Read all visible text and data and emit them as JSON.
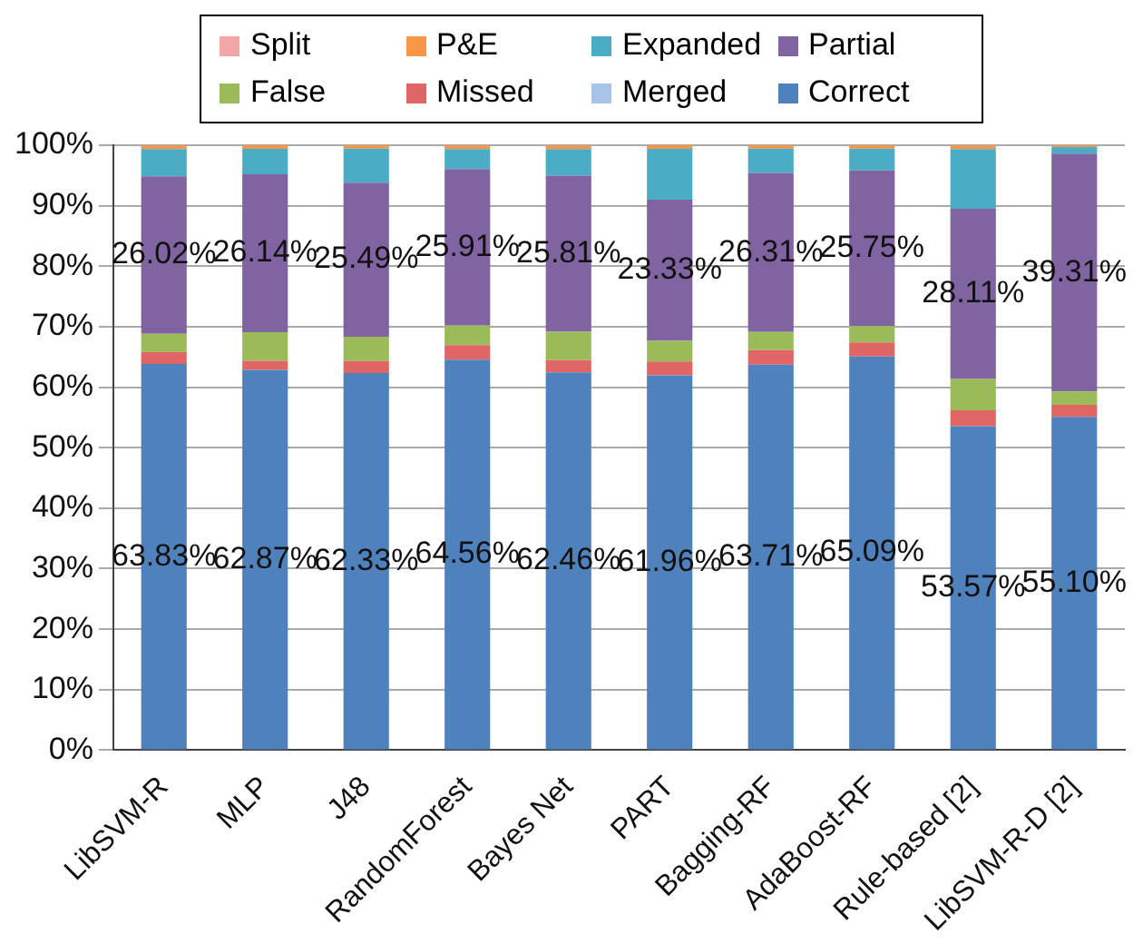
{
  "chart_data": {
    "type": "bar",
    "stacked": true,
    "categories": [
      "LibSVM-R",
      "MLP",
      "J48",
      "RandomForest",
      "Bayes Net",
      "PART",
      "Bagging-RF",
      "AdaBoost-RF",
      "Rule-based [2]",
      "LibSVM-R-D [2]"
    ],
    "series": [
      {
        "name": "Correct",
        "color": "#4f81bd",
        "values": [
          63.83,
          62.87,
          62.33,
          64.56,
          62.46,
          61.96,
          63.71,
          65.09,
          53.57,
          55.1
        ],
        "value_labels": [
          "63.83%",
          "62.87%",
          "62.33%",
          "64.56%",
          "62.46%",
          "61.96%",
          "63.71%",
          "65.09%",
          "53.57%",
          "55.10%"
        ]
      },
      {
        "name": "Merged",
        "color": "#a9c4eb",
        "values": [
          0,
          0,
          0,
          0,
          0,
          0,
          0,
          0,
          0,
          0
        ]
      },
      {
        "name": "Missed",
        "color": "#e06666",
        "values": [
          2,
          1.5,
          2,
          2.4,
          2,
          2.3,
          2.4,
          2.3,
          2.6,
          2
        ]
      },
      {
        "name": "False",
        "color": "#9bbb59",
        "values": [
          3,
          4.7,
          4,
          3.2,
          4.7,
          3.4,
          3,
          2.7,
          5.2,
          2.2
        ]
      },
      {
        "name": "Partial",
        "color": "#8064a2",
        "values": [
          26.02,
          26.14,
          25.49,
          25.91,
          25.81,
          23.33,
          26.31,
          25.75,
          28.11,
          39.31
        ],
        "value_labels": [
          "26.02%",
          "26.14%",
          "25.49%",
          "25.91%",
          "25.81%",
          "23.33%",
          "26.31%",
          "25.75%",
          "28.11%",
          "39.31%"
        ]
      },
      {
        "name": "Expanded",
        "color": "#4bacc6",
        "values": [
          4.5,
          4.2,
          5.6,
          3.3,
          4.4,
          8.4,
          4,
          3.6,
          9.9,
          1.1
        ]
      },
      {
        "name": "P&E",
        "color": "#f79646",
        "values": [
          0.6,
          0.6,
          0.6,
          0.6,
          0.6,
          0.6,
          0.6,
          0.6,
          0.6,
          0.3
        ]
      },
      {
        "name": "Split",
        "color": "#f2a7a7",
        "values": [
          0,
          0,
          0,
          0,
          0,
          0,
          0,
          0,
          0,
          0
        ]
      }
    ],
    "ylim": [
      0,
      100
    ],
    "yticks": [
      {
        "value": 0,
        "label": "0%"
      },
      {
        "value": 10,
        "label": "10%"
      },
      {
        "value": 20,
        "label": "20%"
      },
      {
        "value": 30,
        "label": "30%"
      },
      {
        "value": 40,
        "label": "40%"
      },
      {
        "value": 50,
        "label": "50%"
      },
      {
        "value": 60,
        "label": "60%"
      },
      {
        "value": 70,
        "label": "70%"
      },
      {
        "value": 80,
        "label": "80%"
      },
      {
        "value": 90,
        "label": "90%"
      },
      {
        "value": 100,
        "label": "100%"
      }
    ],
    "grid": "y",
    "legend": "top"
  }
}
